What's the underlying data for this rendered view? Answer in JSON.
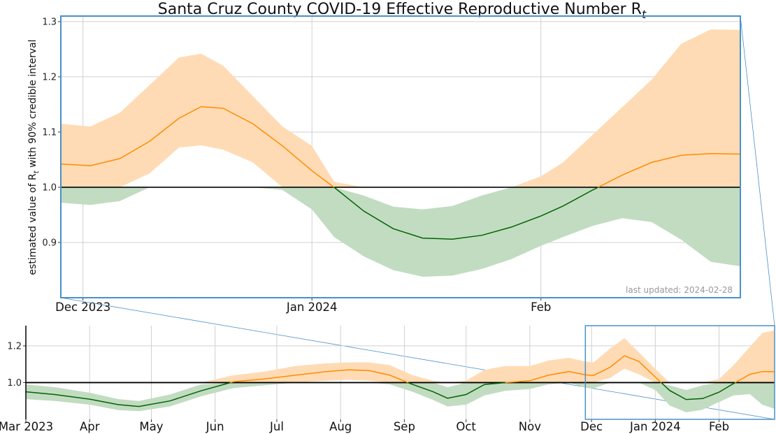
{
  "title": "Santa Cruz County COVID-19 Effective Reproductive Number R",
  "title_subscript": "t",
  "ylabel_parts": [
    "estimated value of R",
    "t",
    " with 90% credible interval"
  ],
  "last_updated": "last updated: 2024-02-28",
  "colors": {
    "above_band": "#ffdbb5",
    "below_band": "#c2dcc2",
    "above_line": "#ff8c00",
    "below_line": "#006400",
    "reference_line": "#000000",
    "inset_border": "#4a90c8",
    "grid": "#d0d0d0"
  },
  "chart_data": [
    {
      "type": "line",
      "panel": "zoomed",
      "title": "Santa Cruz County COVID-19 Effective Reproductive Number Rt",
      "ylabel": "estimated value of Rt with 90% credible interval",
      "xlim": [
        "2023-11-28",
        "2024-02-28"
      ],
      "ylim": [
        0.8,
        1.31
      ],
      "yticks": [
        0.9,
        1.0,
        1.1,
        1.2,
        1.3
      ],
      "xtick_labels": [
        {
          "date": "2023-12-01",
          "label": "Dec 2023"
        },
        {
          "date": "2024-01-01",
          "label": "Jan 2024"
        },
        {
          "date": "2024-02-01",
          "label": "Feb"
        }
      ],
      "reference_line": 1.0,
      "grid": true,
      "series": [
        {
          "x": [
            "2023-11-28",
            "2023-12-02",
            "2023-12-06",
            "2023-12-10",
            "2023-12-14",
            "2023-12-17",
            "2023-12-20",
            "2023-12-24",
            "2023-12-28",
            "2024-01-01",
            "2024-01-04",
            "2024-01-08",
            "2024-01-12",
            "2024-01-16",
            "2024-01-20",
            "2024-01-24",
            "2024-01-28",
            "2024-02-01",
            "2024-02-04",
            "2024-02-08",
            "2024-02-12",
            "2024-02-16",
            "2024-02-20",
            "2024-02-24",
            "2024-02-28"
          ],
          "y": [
            1.042,
            1.039,
            1.052,
            1.083,
            1.125,
            1.146,
            1.143,
            1.115,
            1.075,
            1.03,
            1.0,
            0.957,
            0.925,
            0.908,
            0.906,
            0.913,
            0.928,
            0.948,
            0.966,
            0.995,
            1.022,
            1.045,
            1.058,
            1.061,
            1.06
          ],
          "lower": [
            0.972,
            0.968,
            0.975,
            1.025,
            1.072,
            1.076,
            1.068,
            1.045,
            0.995,
            0.96,
            0.91,
            0.875,
            0.85,
            0.838,
            0.84,
            0.852,
            0.87,
            0.894,
            0.91,
            0.93,
            0.944,
            0.937,
            0.905,
            0.865,
            0.857
          ],
          "upper": [
            1.115,
            1.11,
            1.135,
            1.185,
            1.235,
            1.242,
            1.22,
            1.165,
            1.11,
            1.075,
            1.01,
            0.985,
            0.965,
            0.96,
            0.966,
            0.985,
            1.0,
            1.02,
            1.045,
            1.095,
            1.145,
            1.195,
            1.26,
            1.286,
            1.285
          ]
        }
      ]
    },
    {
      "type": "line",
      "panel": "overview",
      "xlim": [
        "2023-03-01",
        "2024-02-28"
      ],
      "ylim": [
        0.8,
        1.31
      ],
      "yticks": [
        1.0,
        1.2
      ],
      "xtick_labels": [
        {
          "date": "2023-03-01",
          "label": "Mar 2023"
        },
        {
          "date": "2023-04-01",
          "label": "Apr"
        },
        {
          "date": "2023-05-01",
          "label": "May"
        },
        {
          "date": "2023-06-01",
          "label": "Jun"
        },
        {
          "date": "2023-07-01",
          "label": "Jul"
        },
        {
          "date": "2023-08-01",
          "label": "Aug"
        },
        {
          "date": "2023-09-01",
          "label": "Sep"
        },
        {
          "date": "2023-10-01",
          "label": "Oct"
        },
        {
          "date": "2023-11-01",
          "label": "Nov"
        },
        {
          "date": "2023-12-01",
          "label": "Dec"
        },
        {
          "date": "2024-01-01",
          "label": "Jan 2024"
        },
        {
          "date": "2024-02-01",
          "label": "Feb"
        }
      ],
      "reference_line": 1.0,
      "grid": true,
      "inset_range": [
        "2023-11-28",
        "2024-02-28"
      ],
      "series": [
        {
          "x": [
            "2023-03-01",
            "2023-03-15",
            "2023-04-01",
            "2023-04-15",
            "2023-04-25",
            "2023-05-10",
            "2023-05-25",
            "2023-06-10",
            "2023-06-25",
            "2023-07-10",
            "2023-07-25",
            "2023-08-05",
            "2023-08-15",
            "2023-08-25",
            "2023-09-05",
            "2023-09-15",
            "2023-09-22",
            "2023-10-01",
            "2023-10-10",
            "2023-10-20",
            "2023-11-01",
            "2023-11-10",
            "2023-11-20",
            "2023-11-28",
            "2023-12-02",
            "2023-12-10",
            "2023-12-17",
            "2023-12-24",
            "2024-01-01",
            "2024-01-08",
            "2024-01-16",
            "2024-01-24",
            "2024-02-01",
            "2024-02-08",
            "2024-02-16",
            "2024-02-22",
            "2024-02-28"
          ],
          "y": [
            0.95,
            0.935,
            0.91,
            0.88,
            0.87,
            0.9,
            0.955,
            1.005,
            1.02,
            1.04,
            1.06,
            1.07,
            1.065,
            1.04,
            0.99,
            0.95,
            0.915,
            0.935,
            0.99,
            1.0,
            1.01,
            1.04,
            1.06,
            1.042,
            1.039,
            1.083,
            1.146,
            1.115,
            1.03,
            0.957,
            0.908,
            0.913,
            0.948,
            0.995,
            1.045,
            1.06,
            1.06
          ],
          "lower": [
            0.91,
            0.9,
            0.88,
            0.85,
            0.845,
            0.87,
            0.925,
            0.97,
            0.985,
            1.0,
            1.01,
            1.015,
            1.01,
            0.99,
            0.95,
            0.905,
            0.87,
            0.88,
            0.93,
            0.955,
            0.965,
            0.99,
            1.005,
            0.972,
            0.968,
            1.025,
            1.076,
            1.045,
            0.96,
            0.875,
            0.838,
            0.852,
            0.894,
            0.93,
            0.937,
            0.88,
            0.857
          ],
          "upper": [
            0.99,
            0.975,
            0.945,
            0.91,
            0.9,
            0.935,
            0.99,
            1.04,
            1.06,
            1.09,
            1.105,
            1.11,
            1.11,
            1.095,
            1.04,
            1.01,
            0.975,
            1.01,
            1.07,
            1.09,
            1.09,
            1.12,
            1.135,
            1.115,
            1.11,
            1.185,
            1.242,
            1.165,
            1.075,
            0.985,
            0.96,
            0.985,
            1.02,
            1.095,
            1.195,
            1.27,
            1.285
          ]
        }
      ]
    }
  ]
}
